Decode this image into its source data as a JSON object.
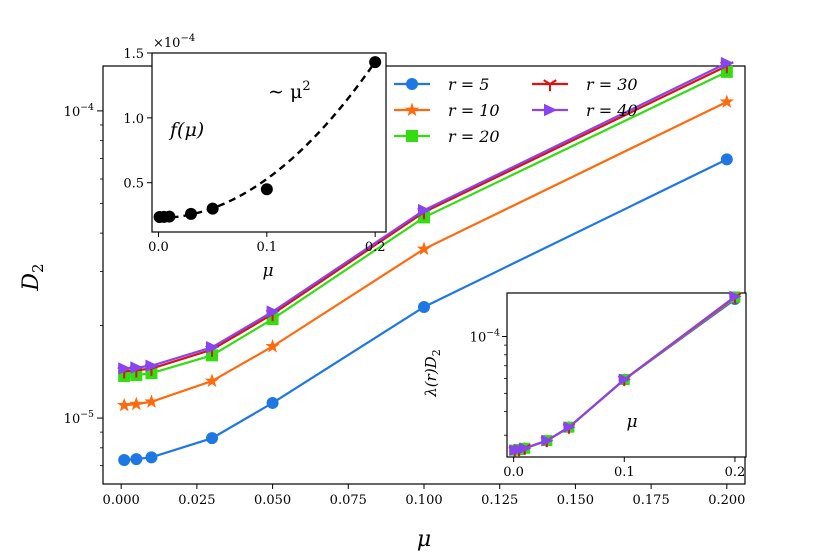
{
  "chart_data": [
    {
      "type": "line",
      "role": "main",
      "xlabel": "μ",
      "ylabel": "D",
      "ylabel_sub": "2",
      "yscale": "log",
      "xlim": [
        -0.006,
        0.206
      ],
      "ylim": [
        6.1e-06,
        0.00014
      ],
      "x_ticks": [
        "0.000",
        "0.025",
        "0.050",
        "0.075",
        "0.100",
        "0.125",
        "0.150",
        "0.175",
        "0.200"
      ],
      "x_tick_values": [
        0,
        0.025,
        0.05,
        0.075,
        0.1,
        0.125,
        0.15,
        0.175,
        0.2
      ],
      "y_ticks": [
        {
          "value": 0.0001,
          "base": "10",
          "exp": "−4"
        },
        {
          "value": 1e-05,
          "base": "10",
          "exp": "−5"
        }
      ],
      "x": [
        0.001,
        0.005,
        0.01,
        0.03,
        0.05,
        0.1,
        0.2
      ],
      "series": [
        {
          "name": "r = 5",
          "color": "#1f77e4",
          "marker": "circle",
          "values": [
            7.3e-06,
            7.35e-06,
            7.45e-06,
            8.6e-06,
            1.12e-05,
            2.3e-05,
            6.95e-05
          ]
        },
        {
          "name": "r = 10",
          "color": "#ff6a0e",
          "marker": "star",
          "values": [
            1.1e-05,
            1.11e-05,
            1.13e-05,
            1.32e-05,
            1.71e-05,
            3.55e-05,
            0.000107
          ]
        },
        {
          "name": "r = 20",
          "color": "#33dd11",
          "marker": "square",
          "values": [
            1.37e-05,
            1.38e-05,
            1.4e-05,
            1.6e-05,
            2.1e-05,
            4.5e-05,
            0.000134
          ]
        },
        {
          "name": "r = 30",
          "color": "#dd1111",
          "marker": "tri_down",
          "values": [
            1.42e-05,
            1.43e-05,
            1.45e-05,
            1.67e-05,
            2.18e-05,
            4.68e-05,
            0.00014
          ]
        },
        {
          "name": "r = 40",
          "color": "#8844ee",
          "marker": "tri_right",
          "values": [
            1.45e-05,
            1.46e-05,
            1.48e-05,
            1.7e-05,
            2.22e-05,
            4.75e-05,
            0.000143
          ]
        }
      ],
      "legend": {
        "columns": 2,
        "order": [
          "r = 5",
          "r = 30",
          "r = 10",
          "r = 40",
          "r = 20"
        ]
      }
    },
    {
      "type": "scatter",
      "role": "inset-top-left",
      "xlabel": "μ",
      "annotation": "f(μ)",
      "fit_label": "∼ μ",
      "fit_label_sup": "2",
      "multiplier_base": "×10",
      "multiplier_exp": "−4",
      "xlim": [
        -0.006,
        0.21
      ],
      "ylim": [
        0.12,
        1.5
      ],
      "x_ticks": [
        "0.0",
        "0.1",
        "0.2"
      ],
      "x_tick_values": [
        0,
        0.1,
        0.2
      ],
      "y_ticks": [
        "0.5",
        "1.0",
        "1.5"
      ],
      "y_tick_values": [
        0.5,
        1.0,
        1.5
      ],
      "points": {
        "x": [
          0.001,
          0.005,
          0.01,
          0.03,
          0.05,
          0.1,
          0.2
        ],
        "y": [
          0.236,
          0.237,
          0.239,
          0.26,
          0.3,
          0.45,
          1.43
        ]
      },
      "fit": {
        "type": "quadratic",
        "a": 30.1,
        "c": 0.228,
        "color": "#000000",
        "style": "dashed"
      }
    },
    {
      "type": "line",
      "role": "inset-bottom-right",
      "xlabel": "μ",
      "ylabel": "λ(r)D",
      "ylabel_sub": "2",
      "yscale": "log",
      "xlim": [
        -0.006,
        0.21
      ],
      "ylim": [
        2.3e-05,
        0.00017
      ],
      "x_ticks": [
        "0.0",
        "0.1",
        "0.2"
      ],
      "x_tick_values": [
        0,
        0.1,
        0.2
      ],
      "y_ticks": [
        {
          "value": 0.0001,
          "base": "10",
          "exp": "−4"
        }
      ],
      "x": [
        0.001,
        0.005,
        0.01,
        0.03,
        0.05,
        0.1,
        0.2
      ],
      "series": [
        {
          "name": "r = 5",
          "color": "#1f77e4",
          "values": [
            2.5e-05,
            2.52e-05,
            2.55e-05,
            2.8e-05,
            3.3e-05,
            5.9e-05,
            0.000157
          ]
        },
        {
          "name": "r = 10",
          "color": "#ff6a0e",
          "values": [
            2.5e-05,
            2.52e-05,
            2.55e-05,
            2.8e-05,
            3.3e-05,
            5.9e-05,
            0.00016
          ]
        },
        {
          "name": "r = 20",
          "color": "#33dd11",
          "values": [
            2.5e-05,
            2.52e-05,
            2.56e-05,
            2.81e-05,
            3.31e-05,
            5.92e-05,
            0.000162
          ]
        },
        {
          "name": "r = 30",
          "color": "#dd1111",
          "values": [
            2.5e-05,
            2.52e-05,
            2.56e-05,
            2.81e-05,
            3.31e-05,
            5.92e-05,
            0.000162
          ]
        },
        {
          "name": "r = 40",
          "color": "#8844ee",
          "values": [
            2.5e-05,
            2.52e-05,
            2.56e-05,
            2.81e-05,
            3.31e-05,
            5.93e-05,
            0.000163
          ]
        }
      ]
    }
  ]
}
